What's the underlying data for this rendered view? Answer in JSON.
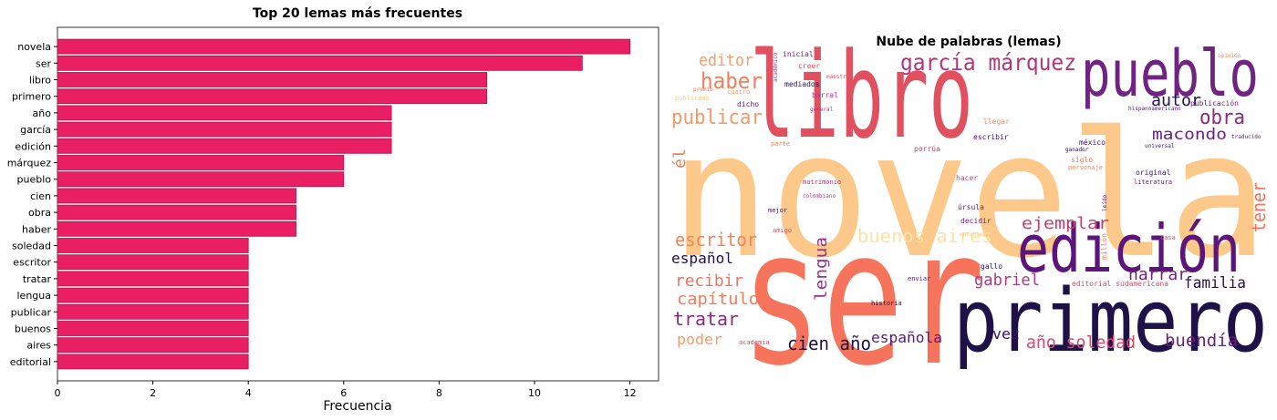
{
  "chart_data": [
    {
      "type": "barh",
      "title": "Top 20 lemas más frecuentes",
      "x_label": "Frecuencia",
      "categories": [
        "novela",
        "ser",
        "libro",
        "primero",
        "año",
        "garcía",
        "edición",
        "márquez",
        "pueblo",
        "cien",
        "obra",
        "haber",
        "soledad",
        "escritor",
        "tratar",
        "lengua",
        "publicar",
        "buenos",
        "aires",
        "editorial"
      ],
      "values": [
        12,
        11,
        9,
        9,
        7,
        7,
        7,
        6,
        6,
        5,
        5,
        5,
        4,
        4,
        4,
        4,
        4,
        4,
        4,
        4
      ],
      "color": "#e91e63",
      "edge_color": "#b0124a",
      "xlim": [
        0,
        12.6
      ],
      "xticks": [
        0,
        2,
        4,
        6,
        8,
        10,
        12
      ],
      "grid": false
    },
    {
      "type": "wordcloud",
      "title": "Nube de palabras (lemas)",
      "words": [
        {
          "text": "novela",
          "color": "#fdc98b"
        },
        {
          "text": "ser",
          "color": "#f6735c"
        },
        {
          "text": "libro",
          "color": "#e0505e"
        },
        {
          "text": "primero",
          "color": "#1d1147"
        },
        {
          "text": "edición",
          "color": "#5c167a"
        },
        {
          "text": "pueblo",
          "color": "#6e2480"
        },
        {
          "text": "garcía márquez",
          "color": "#b4367a"
        },
        {
          "text": "haber",
          "color": "#f0805f"
        },
        {
          "text": "editor",
          "color": "#f4a06a"
        },
        {
          "text": "publicar",
          "color": "#f59a6a"
        },
        {
          "text": "autor",
          "color": "#221150"
        },
        {
          "text": "obra",
          "color": "#8a2a80"
        },
        {
          "text": "macondo",
          "color": "#6b1f7b"
        },
        {
          "text": "ejemplar",
          "color": "#c6406e"
        },
        {
          "text": "tener",
          "color": "#f7705c"
        },
        {
          "text": "él",
          "color": "#f08060"
        },
        {
          "text": "escritor",
          "color": "#f4845f"
        },
        {
          "text": "buenos aires",
          "color": "#fde3a6"
        },
        {
          "text": "lengua",
          "color": "#9a3486"
        },
        {
          "text": "español",
          "color": "#221150"
        },
        {
          "text": "recibir",
          "color": "#f0735e"
        },
        {
          "text": "gabriel",
          "color": "#b03a7a"
        },
        {
          "text": "narrar",
          "color": "#73237e"
        },
        {
          "text": "familia",
          "color": "#221150"
        },
        {
          "text": "capítulo",
          "color": "#f27c5c"
        },
        {
          "text": "tratar",
          "color": "#892b80"
        },
        {
          "text": "poder",
          "color": "#fa9b6a"
        },
        {
          "text": "cien año",
          "color": "#1d1147"
        },
        {
          "text": "española",
          "color": "#5a1a7a"
        },
        {
          "text": "vez",
          "color": "#3b0f70"
        },
        {
          "text": "año soledad",
          "color": "#d74b6c"
        },
        {
          "text": "buendía",
          "color": "#6b1f7b"
        },
        {
          "text": "inicial",
          "color": "#6b1f7b"
        },
        {
          "text": "creer",
          "color": "#e0505e"
        },
        {
          "text": "mediados",
          "color": "#221150"
        },
        {
          "text": "barral",
          "color": "#b4367a"
        },
        {
          "text": "dicho",
          "color": "#5c167a"
        },
        {
          "text": "cuatro",
          "color": "#fa9b6a"
        },
        {
          "text": "premio",
          "color": "#f6735c"
        },
        {
          "text": "publicado",
          "color": "#fdc98b"
        },
        {
          "text": "maestro",
          "color": "#e0505e"
        },
        {
          "text": "general",
          "color": "#b4367a"
        },
        {
          "text": "parte",
          "color": "#f4845f"
        },
        {
          "text": "llegar",
          "color": "#f4845f"
        },
        {
          "text": "escribir",
          "color": "#3b0f70"
        },
        {
          "text": "porrúa",
          "color": "#c6406e"
        },
        {
          "text": "hacer",
          "color": "#c6406e"
        },
        {
          "text": "matrimonio",
          "color": "#b4367a"
        },
        {
          "text": "colombiano",
          "color": "#b4367a"
        },
        {
          "text": "mejor",
          "color": "#3b0f70"
        },
        {
          "text": "amigo",
          "color": "#e0505e"
        },
        {
          "text": "úrsula",
          "color": "#6b1f7b"
        },
        {
          "text": "decidir",
          "color": "#6b1f7b"
        },
        {
          "text": "entonces",
          "color": "#fdc98b"
        },
        {
          "text": "gallo",
          "color": "#221150"
        },
        {
          "text": "enviar",
          "color": "#5c167a"
        },
        {
          "text": "editorial sudamericana",
          "color": "#d74b6c"
        },
        {
          "text": "historia",
          "color": "#221150"
        },
        {
          "text": "academia",
          "color": "#d74b6c"
        },
        {
          "text": "méxico",
          "color": "#3b0f70"
        },
        {
          "text": "ganador",
          "color": "#221150"
        },
        {
          "text": "siglo",
          "color": "#f6735c"
        },
        {
          "text": "personaje",
          "color": "#f4845f"
        },
        {
          "text": "original",
          "color": "#3b0f70"
        },
        {
          "text": "literatura",
          "color": "#5c167a"
        },
        {
          "text": "hispanoamericano",
          "color": "#5c167a"
        },
        {
          "text": "publicación",
          "color": "#6b1f7b"
        },
        {
          "text": "traducido",
          "color": "#5c167a"
        },
        {
          "text": "universal",
          "color": "#3b0f70"
        },
        {
          "text": "opinión",
          "color": "#f4845f"
        },
        {
          "text": "millón",
          "color": "#f4845f"
        },
        {
          "text": "casa",
          "color": "#e0505e"
        },
        {
          "text": "leído",
          "color": "#5c167a"
        },
        {
          "text": "académico",
          "color": "#b4367a"
        }
      ]
    }
  ]
}
